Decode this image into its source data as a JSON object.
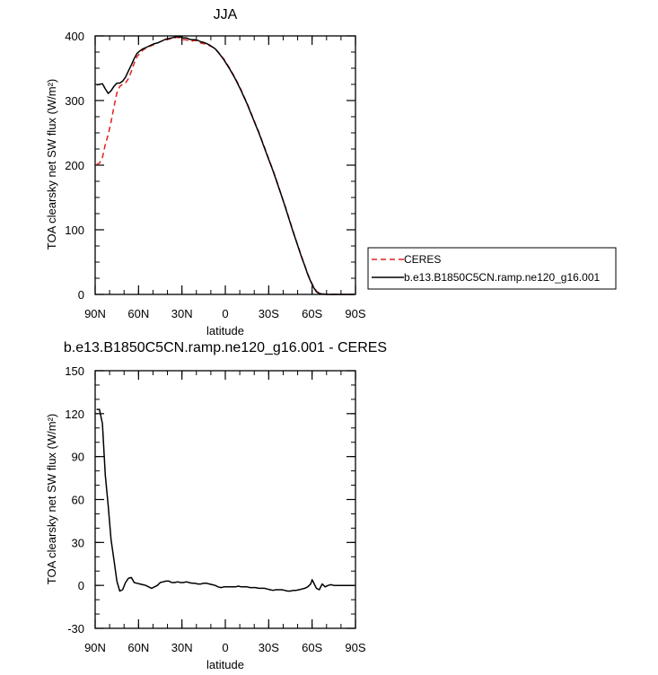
{
  "chart_data": [
    {
      "type": "line",
      "title": "JJA",
      "xlabel": "latitude",
      "ylabel": "TOA clearsky net SW flux (W/m²)",
      "xlim": [
        90,
        -90
      ],
      "ylim": [
        0,
        400
      ],
      "x_ticks": [
        {
          "value": 90,
          "label": "90N"
        },
        {
          "value": 60,
          "label": "60N"
        },
        {
          "value": 30,
          "label": "30N"
        },
        {
          "value": 0,
          "label": "0"
        },
        {
          "value": -30,
          "label": "30S"
        },
        {
          "value": -60,
          "label": "60S"
        },
        {
          "value": -90,
          "label": "90S"
        }
      ],
      "y_ticks": [
        0,
        100,
        200,
        300,
        400
      ],
      "legend_position": "right",
      "series": [
        {
          "name": "CERES",
          "color": "#e02020",
          "dash": "dashed",
          "points": [
            [
              89,
              201
            ],
            [
              87,
              203
            ],
            [
              85,
              212
            ],
            [
              83,
              232
            ],
            [
              81,
              247
            ],
            [
              79,
              267
            ],
            [
              77,
              290
            ],
            [
              75,
              312
            ],
            [
              73,
              322
            ],
            [
              71,
              325
            ],
            [
              69,
              327
            ],
            [
              67,
              334
            ],
            [
              65,
              345
            ],
            [
              63,
              358
            ],
            [
              61,
              368
            ],
            [
              59,
              373
            ],
            [
              57,
              378
            ],
            [
              55,
              381
            ],
            [
              53,
              383
            ],
            [
              51,
              385
            ],
            [
              49,
              387
            ],
            [
              47,
              389
            ],
            [
              45,
              391
            ],
            [
              43,
              393
            ],
            [
              41,
              394
            ],
            [
              39,
              395
            ],
            [
              37,
              396
            ],
            [
              35,
              397
            ],
            [
              33,
              398
            ],
            [
              31,
              396
            ],
            [
              29,
              394
            ],
            [
              27,
              394
            ],
            [
              25,
              392
            ],
            [
              23,
              392
            ],
            [
              21,
              393
            ],
            [
              19,
              392
            ],
            [
              17,
              389
            ],
            [
              15,
              388
            ],
            [
              13,
              387
            ],
            [
              11,
              385
            ],
            [
              9,
              383
            ],
            [
              7,
              380
            ],
            [
              5,
              375
            ],
            [
              3,
              370
            ],
            [
              1,
              364
            ],
            [
              -1,
              357
            ],
            [
              -3,
              350
            ],
            [
              -5,
              342
            ],
            [
              -7,
              334
            ],
            [
              -9,
              325
            ],
            [
              -11,
              316
            ],
            [
              -13,
              306
            ],
            [
              -15,
              296
            ],
            [
              -17,
              285
            ],
            [
              -19,
              274
            ],
            [
              -21,
              263
            ],
            [
              -23,
              252
            ],
            [
              -25,
              240
            ],
            [
              -27,
              228
            ],
            [
              -29,
              216
            ],
            [
              -31,
              204
            ],
            [
              -33,
              192
            ],
            [
              -35,
              179
            ],
            [
              -37,
              166
            ],
            [
              -39,
              152
            ],
            [
              -41,
              139
            ],
            [
              -43,
              125
            ],
            [
              -45,
              111
            ],
            [
              -47,
              97
            ],
            [
              -49,
              83
            ],
            [
              -51,
              70
            ],
            [
              -53,
              57
            ],
            [
              -55,
              44
            ],
            [
              -57,
              32
            ],
            [
              -59,
              21
            ],
            [
              -61,
              12
            ],
            [
              -63,
              5
            ],
            [
              -65,
              2
            ],
            [
              -67,
              0.8
            ],
            [
              -69,
              0.3
            ],
            [
              -71,
              0
            ],
            [
              -75,
              0
            ],
            [
              -80,
              0
            ],
            [
              -85,
              0
            ],
            [
              -89,
              0
            ]
          ]
        },
        {
          "name": "b.e13.B1850C5CN.ramp.ne120_g16.001",
          "color": "#000000",
          "dash": "solid",
          "points": [
            [
              89,
              324
            ],
            [
              87,
              325
            ],
            [
              85,
              326
            ],
            [
              83,
              318
            ],
            [
              81,
              311
            ],
            [
              79,
              315
            ],
            [
              77,
              322
            ],
            [
              75,
              327
            ],
            [
              73,
              327
            ],
            [
              71,
              330
            ],
            [
              69,
              336
            ],
            [
              67,
              346
            ],
            [
              65,
              355
            ],
            [
              63,
              365
            ],
            [
              61,
              373
            ],
            [
              59,
              377
            ],
            [
              57,
              380
            ],
            [
              55,
              382
            ],
            [
              53,
              384
            ],
            [
              51,
              386
            ],
            [
              49,
              388
            ],
            [
              47,
              389
            ],
            [
              45,
              391
            ],
            [
              43,
              393
            ],
            [
              41,
              395
            ],
            [
              39,
              396
            ],
            [
              37,
              397
            ],
            [
              35,
              398
            ],
            [
              33,
              399
            ],
            [
              31,
              398
            ],
            [
              29,
              397
            ],
            [
              27,
              397
            ],
            [
              25,
              395
            ],
            [
              23,
              394
            ],
            [
              21,
              394
            ],
            [
              19,
              393
            ],
            [
              17,
              391
            ],
            [
              15,
              390
            ],
            [
              13,
              388
            ],
            [
              11,
              386
            ],
            [
              9,
              383
            ],
            [
              7,
              380
            ],
            [
              5,
              375
            ],
            [
              3,
              369
            ],
            [
              1,
              363
            ],
            [
              -1,
              356
            ],
            [
              -3,
              349
            ],
            [
              -5,
              341
            ],
            [
              -7,
              333
            ],
            [
              -9,
              324
            ],
            [
              -11,
              315
            ],
            [
              -13,
              305
            ],
            [
              -15,
              295
            ],
            [
              -17,
              284
            ],
            [
              -19,
              273
            ],
            [
              -21,
              262
            ],
            [
              -23,
              251
            ],
            [
              -25,
              239
            ],
            [
              -27,
              227
            ],
            [
              -29,
              215
            ],
            [
              -31,
              203
            ],
            [
              -33,
              191
            ],
            [
              -35,
              178
            ],
            [
              -37,
              165
            ],
            [
              -39,
              152
            ],
            [
              -41,
              138
            ],
            [
              -43,
              124
            ],
            [
              -45,
              110
            ],
            [
              -47,
              96
            ],
            [
              -49,
              83
            ],
            [
              -51,
              69
            ],
            [
              -53,
              56
            ],
            [
              -55,
              44
            ],
            [
              -57,
              31
            ],
            [
              -59,
              20
            ],
            [
              -61,
              11
            ],
            [
              -63,
              4
            ],
            [
              -65,
              1.5
            ],
            [
              -67,
              0.5
            ],
            [
              -71,
              0
            ],
            [
              -75,
              0
            ],
            [
              -80,
              0
            ],
            [
              -85,
              0
            ],
            [
              -89,
              0
            ]
          ]
        }
      ]
    },
    {
      "type": "line",
      "title": "b.e13.B1850C5CN.ramp.ne120_g16.001 - CERES",
      "xlabel": "latitude",
      "ylabel": "TOA clearsky net SW flux (W/m²)",
      "xlim": [
        90,
        -90
      ],
      "ylim": [
        -30,
        150
      ],
      "x_ticks": [
        {
          "value": 90,
          "label": "90N"
        },
        {
          "value": 60,
          "label": "60N"
        },
        {
          "value": 30,
          "label": "30N"
        },
        {
          "value": 0,
          "label": "0"
        },
        {
          "value": -30,
          "label": "30S"
        },
        {
          "value": -60,
          "label": "60S"
        },
        {
          "value": -90,
          "label": "90S"
        }
      ],
      "y_ticks": [
        -30,
        0,
        30,
        60,
        90,
        120,
        150
      ],
      "series": [
        {
          "color": "#000000",
          "dash": "solid",
          "points": [
            [
              89,
              123
            ],
            [
              87,
              123
            ],
            [
              85,
              113
            ],
            [
              83,
              77
            ],
            [
              81,
              56
            ],
            [
              79,
              32
            ],
            [
              77,
              18
            ],
            [
              75,
              3
            ],
            [
              73,
              -4
            ],
            [
              71,
              -3
            ],
            [
              69,
              2
            ],
            [
              67,
              5
            ],
            [
              65,
              5.5
            ],
            [
              63,
              2
            ],
            [
              61,
              1.5
            ],
            [
              59,
              1
            ],
            [
              57,
              0.5
            ],
            [
              55,
              0
            ],
            [
              53,
              -1
            ],
            [
              51,
              -2
            ],
            [
              49,
              -1
            ],
            [
              47,
              0
            ],
            [
              45,
              2
            ],
            [
              43,
              2.5
            ],
            [
              41,
              3
            ],
            [
              39,
              3
            ],
            [
              37,
              2
            ],
            [
              35,
              2
            ],
            [
              33,
              2.5
            ],
            [
              31,
              2
            ],
            [
              29,
              2
            ],
            [
              27,
              2.5
            ],
            [
              25,
              2
            ],
            [
              23,
              1.5
            ],
            [
              21,
              1.5
            ],
            [
              19,
              1
            ],
            [
              17,
              1
            ],
            [
              15,
              1.5
            ],
            [
              13,
              1.5
            ],
            [
              11,
              1
            ],
            [
              9,
              0.5
            ],
            [
              7,
              0
            ],
            [
              5,
              -1
            ],
            [
              3,
              -1.5
            ],
            [
              1,
              -1
            ],
            [
              -1,
              -1
            ],
            [
              -3,
              -1
            ],
            [
              -5,
              -1
            ],
            [
              -7,
              -1
            ],
            [
              -9,
              -0.5
            ],
            [
              -11,
              -1
            ],
            [
              -13,
              -1
            ],
            [
              -15,
              -1
            ],
            [
              -17,
              -1.5
            ],
            [
              -19,
              -1.5
            ],
            [
              -21,
              -1.5
            ],
            [
              -23,
              -2
            ],
            [
              -25,
              -2
            ],
            [
              -27,
              -2
            ],
            [
              -29,
              -2.5
            ],
            [
              -31,
              -3
            ],
            [
              -33,
              -3.5
            ],
            [
              -35,
              -3
            ],
            [
              -37,
              -3
            ],
            [
              -39,
              -3
            ],
            [
              -41,
              -3.5
            ],
            [
              -43,
              -4
            ],
            [
              -45,
              -4
            ],
            [
              -47,
              -3.5
            ],
            [
              -49,
              -3.5
            ],
            [
              -51,
              -3
            ],
            [
              -53,
              -2.5
            ],
            [
              -55,
              -2
            ],
            [
              -57,
              -1
            ],
            [
              -59,
              1
            ],
            [
              -60,
              4
            ],
            [
              -61,
              2
            ],
            [
              -63,
              -2
            ],
            [
              -65,
              -3
            ],
            [
              -67,
              1
            ],
            [
              -69,
              -1
            ],
            [
              -71,
              0
            ],
            [
              -73,
              0.5
            ],
            [
              -75,
              0
            ],
            [
              -80,
              0
            ],
            [
              -85,
              0
            ],
            [
              -89,
              0
            ]
          ]
        }
      ]
    }
  ]
}
